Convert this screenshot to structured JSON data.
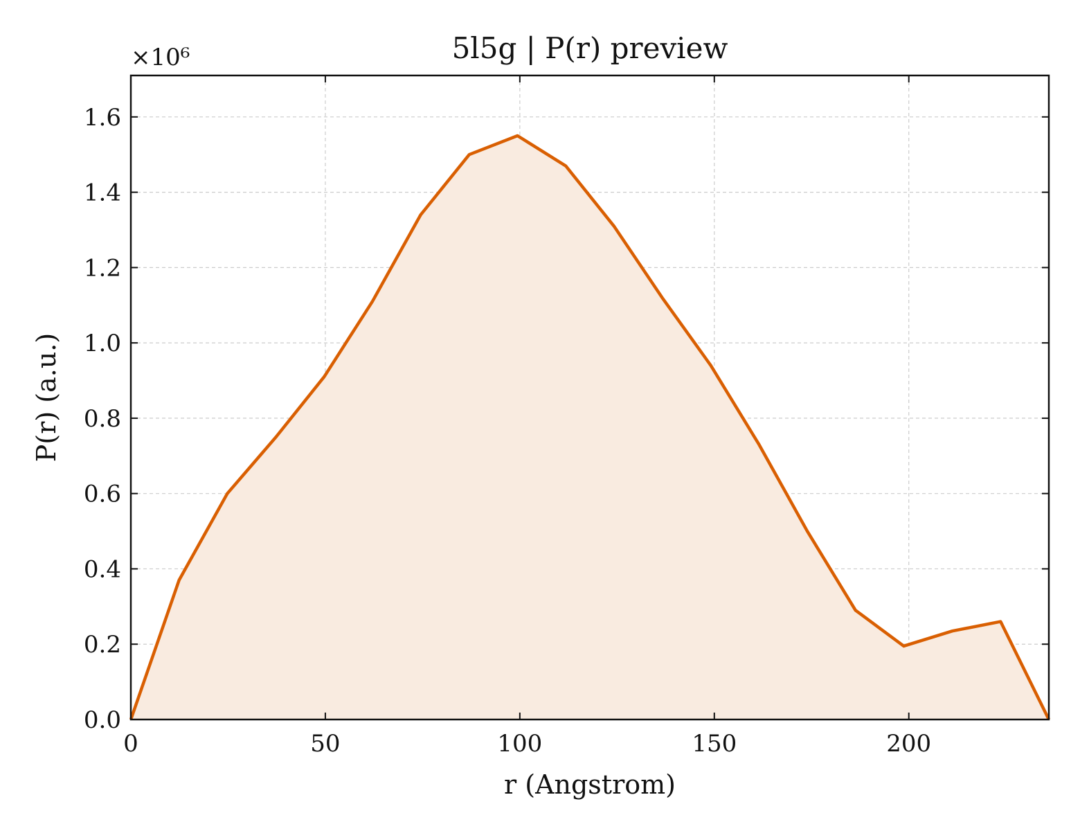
{
  "chart_data": {
    "type": "area",
    "title": "5l5g | P(r) preview",
    "xlabel": "r (Angstrom)",
    "ylabel": "P(r) (a.u.)",
    "y_offset_label": "×10⁶",
    "xlim": [
      0,
      236
    ],
    "ylim": [
      0,
      1.71
    ],
    "x_ticks": [
      0,
      50,
      100,
      150,
      200
    ],
    "x_tick_labels": [
      "0",
      "50",
      "100",
      "150",
      "200"
    ],
    "y_ticks": [
      0.0,
      0.2,
      0.4,
      0.6,
      0.8,
      1.0,
      1.2,
      1.4,
      1.6
    ],
    "y_tick_labels": [
      "0.0",
      "0.2",
      "0.4",
      "0.6",
      "0.8",
      "1.0",
      "1.2",
      "1.4",
      "1.6"
    ],
    "grid": true,
    "line_color": "#d95f02",
    "fill_color": "#f9ebe0",
    "series": [
      {
        "x": [
          0,
          12.4,
          24.8,
          37.3,
          49.7,
          62.1,
          74.5,
          87.0,
          99.4,
          111.8,
          124.2,
          136.6,
          149.1,
          161.5,
          173.9,
          186.3,
          198.7,
          211.2,
          223.6,
          236.0
        ],
        "y": [
          0.0,
          0.37,
          0.6,
          0.75,
          0.91,
          1.11,
          1.34,
          1.5,
          1.55,
          1.47,
          1.31,
          1.12,
          0.94,
          0.73,
          0.5,
          0.29,
          0.195,
          0.235,
          0.26,
          0.0
        ]
      }
    ]
  }
}
